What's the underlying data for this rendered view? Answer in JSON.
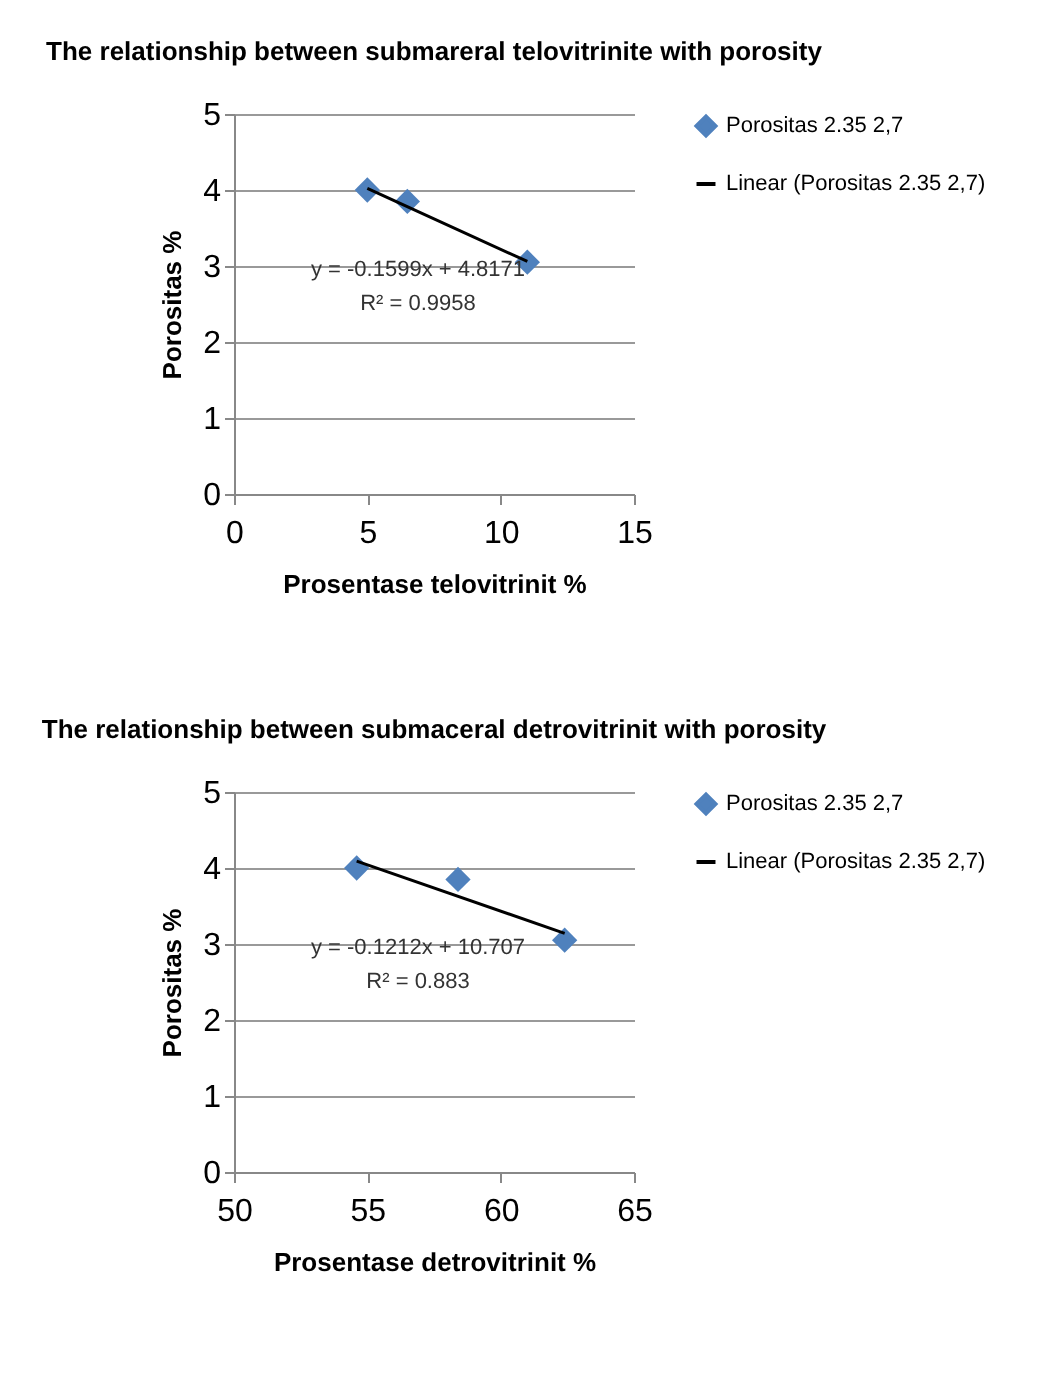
{
  "chart_data": [
    {
      "type": "scatter",
      "title": "The relationship between submareral telovitrinite with porosity",
      "xlabel": "Prosentase telovitrinit %",
      "ylabel": "Porositas %",
      "xlim": [
        0,
        15
      ],
      "xticks": [
        0,
        5,
        10,
        15
      ],
      "ylim": [
        0,
        5
      ],
      "yticks": [
        0,
        1,
        2,
        3,
        4,
        5
      ],
      "grid": "y",
      "legend": "right",
      "marker": "diamond",
      "series": [
        {
          "name": "Porositas 2.35 2,7",
          "color": "#4f81bd",
          "x": [
            5,
            6.5,
            11
          ],
          "values": [
            4.0,
            3.85,
            3.05
          ]
        },
        {
          "name": "Linear (Porositas 2.35 2,7)",
          "type": "line",
          "marker": "none",
          "color": "#000000",
          "x": [
            5,
            11
          ],
          "values": [
            4.02,
            3.06
          ]
        }
      ],
      "annotations": [
        "y = -0.1599x + 4.8171",
        "R² = 0.9958"
      ]
    },
    {
      "type": "scatter",
      "title": "The relationship between submaceral detrovitrinit with porosity",
      "xlabel": "Prosentase detrovitrinit %",
      "ylabel": "Porositas %",
      "xlim": [
        50,
        65
      ],
      "xticks": [
        50,
        55,
        60,
        65
      ],
      "ylim": [
        0,
        5
      ],
      "yticks": [
        0,
        1,
        2,
        3,
        4,
        5
      ],
      "grid": "y",
      "legend": "right",
      "marker": "diamond",
      "series": [
        {
          "name": "Porositas 2.35 2,7",
          "color": "#4f81bd",
          "x": [
            54.6,
            58.4,
            62.4
          ],
          "values": [
            4.0,
            3.85,
            3.05
          ]
        },
        {
          "name": "Linear (Porositas 2.35 2,7)",
          "type": "line",
          "marker": "none",
          "color": "#000000",
          "x": [
            54.6,
            62.4
          ],
          "values": [
            4.09,
            3.14
          ]
        }
      ],
      "annotations": [
        "y = -0.1212x + 10.707",
        "R² = 0.883"
      ]
    }
  ]
}
